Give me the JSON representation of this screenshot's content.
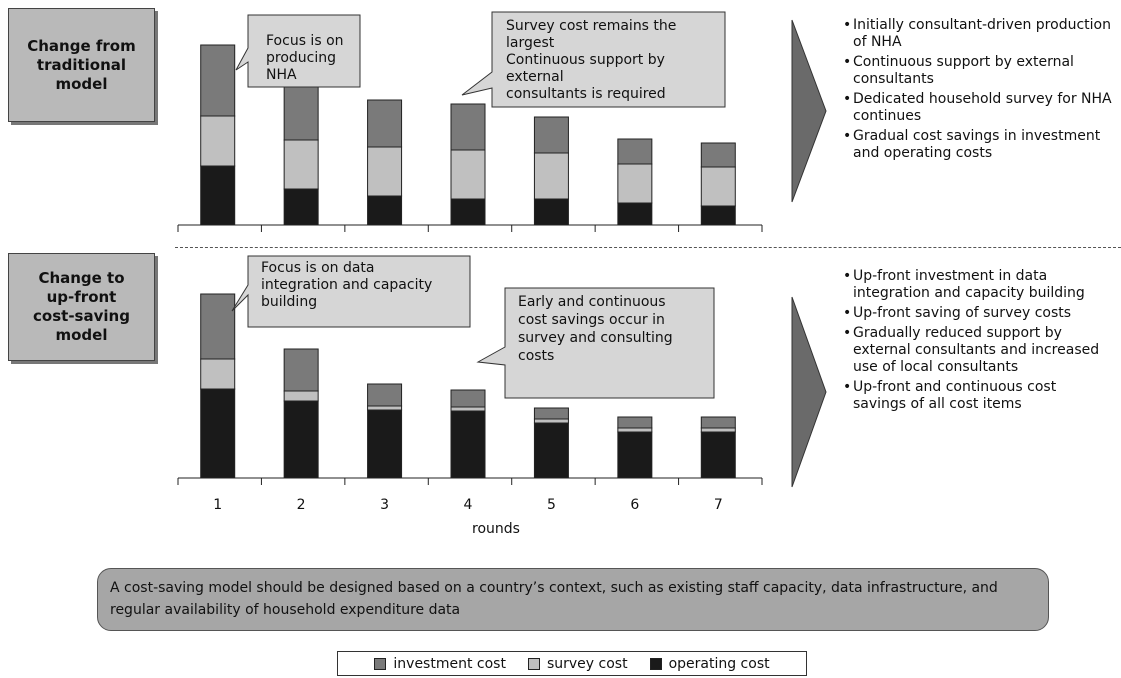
{
  "colors": {
    "investment": "#7a7a7a",
    "survey": "#c0c0c0",
    "operating": "#1a1a1a",
    "callout_fill": "#d6d6d6",
    "label_fill": "#b9b9b9"
  },
  "top": {
    "label": "Change from\ntraditional\nmodel",
    "callouts": [
      {
        "text": "Focus is on\nproducing NHA"
      },
      {
        "text": "Survey cost remains the\nlargest\nContinuous support by external\nconsultants is required"
      }
    ],
    "bullets": [
      "Initially consultant-driven production of NHA",
      "Continuous support by external consultants",
      "Dedicated household survey for NHA continues",
      "Gradual cost savings in investment and operating costs"
    ]
  },
  "bottom": {
    "label": "Change to\nup-front\ncost-saving\nmodel",
    "callouts": [
      {
        "text": "Focus is on data\nintegration and capacity\nbuilding"
      },
      {
        "text": "Early and continuous\ncost savings occur in\nsurvey and consulting\ncosts"
      }
    ],
    "bullets": [
      "Up-front investment in data integration and capacity building",
      "Up-front saving of survey costs",
      "Gradually reduced support by external consultants and increased use of local consultants",
      "Up-front and continuous cost savings of all cost items"
    ]
  },
  "summary": "A cost-saving model should be designed based on a country’s context, such as existing staff capacity, data infrastructure, and regular availability of household expenditure data",
  "legend": [
    {
      "key": "investment",
      "label": "investment cost"
    },
    {
      "key": "survey",
      "label": "survey cost"
    },
    {
      "key": "operating",
      "label": "operating cost"
    }
  ],
  "chart_data": [
    {
      "type": "bar",
      "stacked": true,
      "categories": [
        "1",
        "2",
        "3",
        "4",
        "5",
        "6",
        "7"
      ],
      "series": [
        {
          "name": "operating cost",
          "values": [
            59,
            36,
            29,
            26,
            26,
            22,
            19
          ]
        },
        {
          "name": "survey cost",
          "values": [
            50,
            49,
            49,
            49,
            46,
            39,
            39
          ]
        },
        {
          "name": "investment cost",
          "values": [
            71,
            55,
            47,
            46,
            36,
            25,
            24
          ]
        }
      ],
      "ylim": [
        0,
        180
      ]
    },
    {
      "type": "bar",
      "stacked": true,
      "categories": [
        "1",
        "2",
        "3",
        "4",
        "5",
        "6",
        "7"
      ],
      "series": [
        {
          "name": "operating cost",
          "values": [
            89,
            77,
            68,
            67,
            55,
            46,
            46
          ]
        },
        {
          "name": "survey cost",
          "values": [
            30,
            10,
            4,
            4,
            4,
            4,
            4
          ]
        },
        {
          "name": "investment cost",
          "values": [
            65,
            42,
            22,
            17,
            11,
            11,
            11
          ]
        }
      ],
      "ylim": [
        0,
        180
      ],
      "xlabel": "rounds"
    }
  ]
}
